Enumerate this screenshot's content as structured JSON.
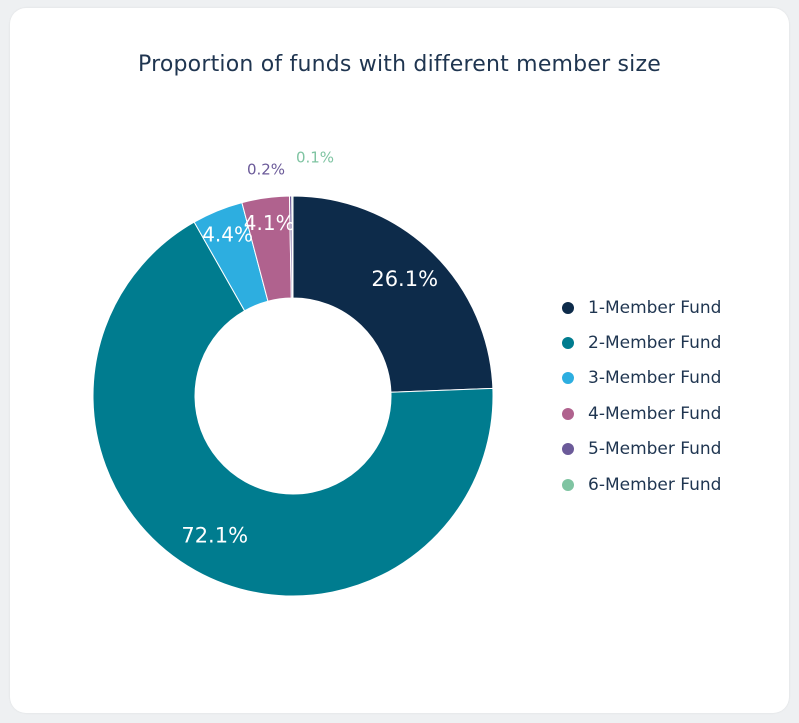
{
  "chart_data": {
    "type": "pie",
    "title": "Proportion of funds with different member size",
    "donut": true,
    "legend_position": "right",
    "slices": [
      {
        "label": "1-Member Fund",
        "value": 26.1,
        "value_label": "26.1%",
        "color": "#0d2b4a",
        "label_color": "#ffffff",
        "label_placement": "inside"
      },
      {
        "label": "2-Member Fund",
        "value": 72.1,
        "value_label": "72.1%",
        "color": "#007c8f",
        "label_color": "#ffffff",
        "label_placement": "inside"
      },
      {
        "label": "3-Member Fund",
        "value": 4.4,
        "value_label": "4.4%",
        "color": "#2daee0",
        "label_color": "#ffffff",
        "label_placement": "inside"
      },
      {
        "label": "4-Member Fund",
        "value": 4.1,
        "value_label": "4.1%",
        "color": "#b0628e",
        "label_color": "#ffffff",
        "label_placement": "inside"
      },
      {
        "label": "5-Member Fund",
        "value": 0.2,
        "value_label": "0.2%",
        "color": "#6b5a99",
        "label_color": "#6b5a99",
        "label_placement": "outside"
      },
      {
        "label": "6-Member Fund",
        "value": 0.1,
        "value_label": "0.1%",
        "color": "#7fc4a2",
        "label_color": "#7fc4a2",
        "label_placement": "outside"
      }
    ]
  }
}
